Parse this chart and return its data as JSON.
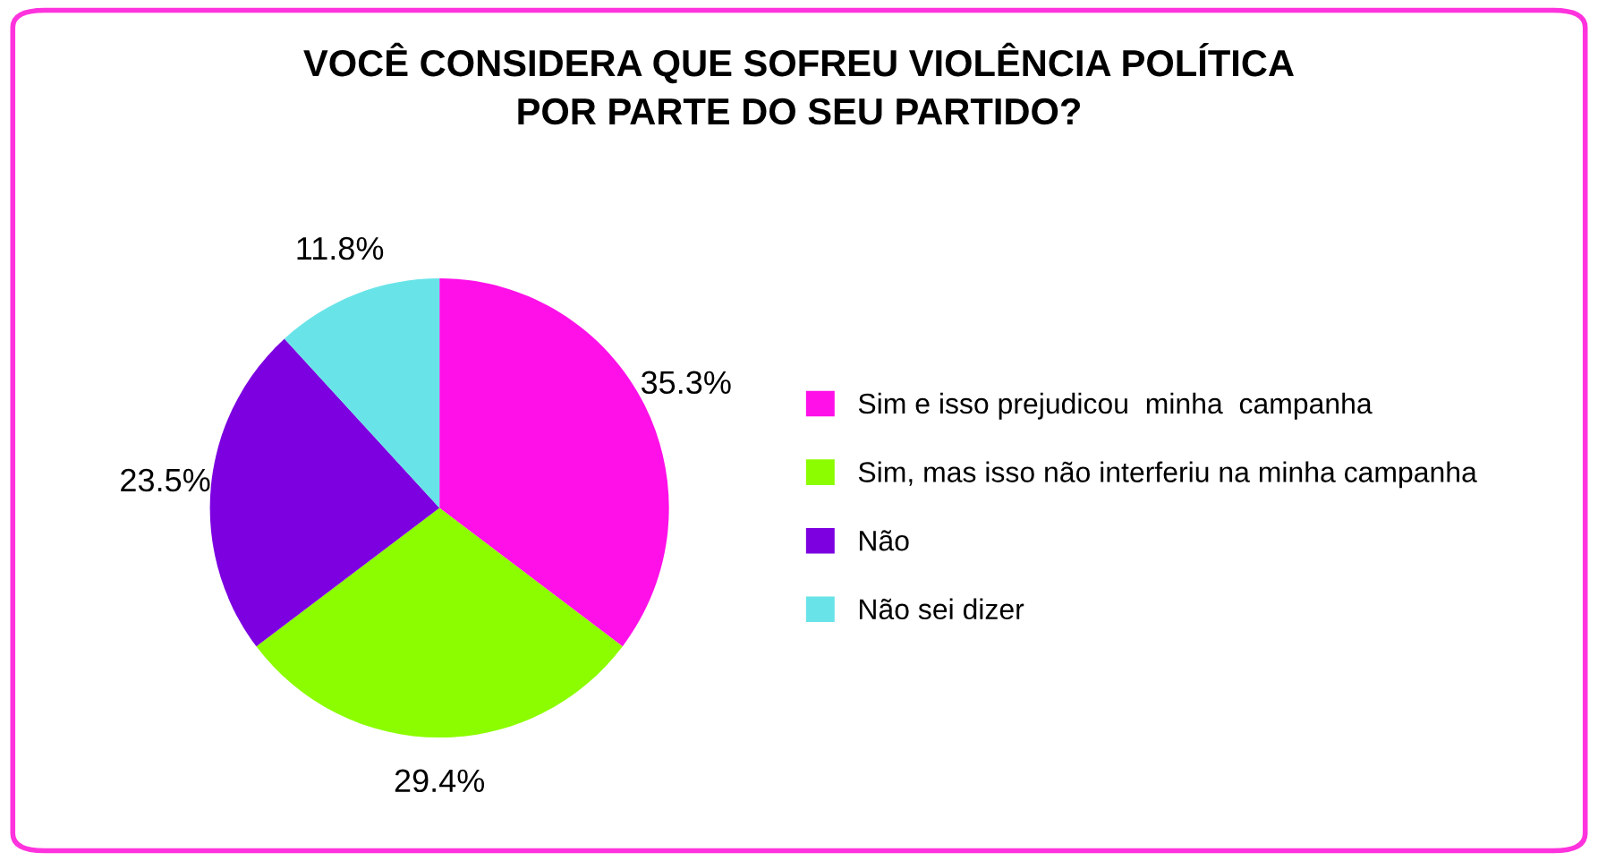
{
  "chart_data": {
    "type": "pie",
    "title": "VOCÊ CONSIDERA QUE SOFREU VIOLÊNCIA POLÍTICA\nPOR PARTE DO SEU PARTIDO?",
    "categories": [
      "Sim e isso prejudicou  minha  campanha",
      "Sim, mas isso não interferiu na minha campanha",
      "Não",
      "Não sei dizer"
    ],
    "values": [
      35.3,
      29.4,
      23.5,
      11.8
    ],
    "value_labels": [
      "35.3%",
      "29.4%",
      "23.5%",
      "11.8%"
    ],
    "colors": [
      "#ff10e8",
      "#8cfc00",
      "#7c00e0",
      "#68e4e8"
    ],
    "legend": "right"
  }
}
